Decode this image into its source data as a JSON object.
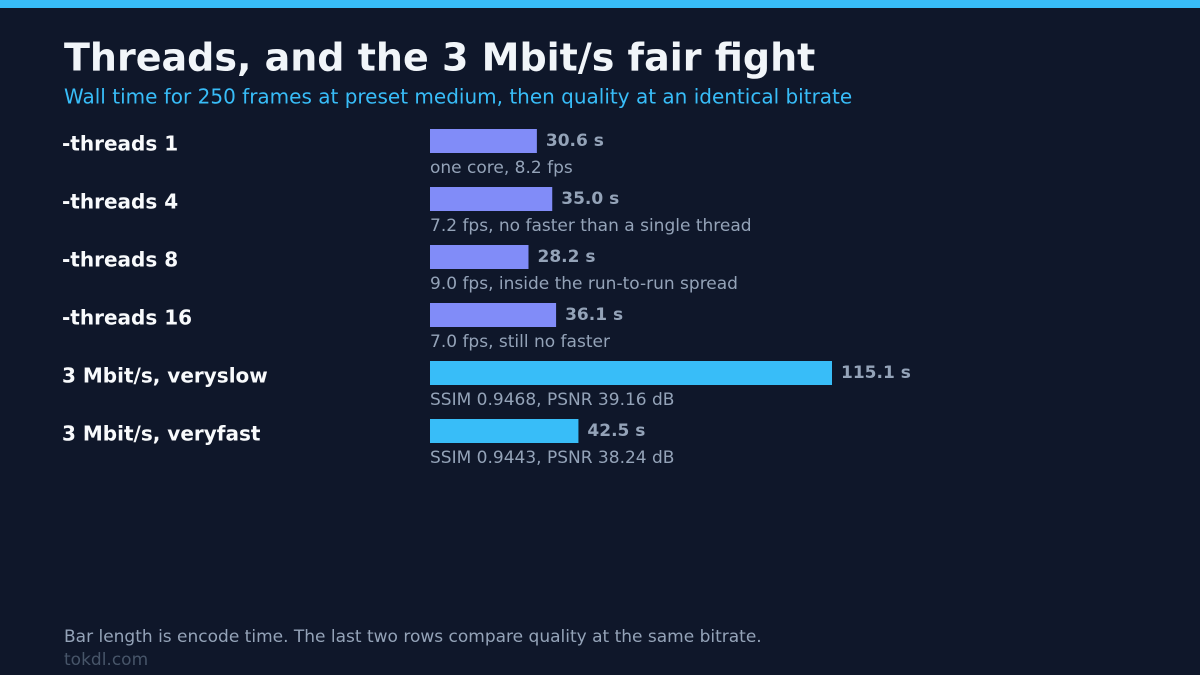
{
  "chart_data": {
    "type": "bar",
    "orientation": "horizontal",
    "title": "Threads, and the 3 Mbit/s fair fight",
    "subtitle": "Wall time for 250 frames at preset medium, then quality at an identical bitrate",
    "categories": [
      "-threads 1",
      "-threads 4",
      "-threads 8",
      "-threads 16",
      "3 Mbit/s, veryslow",
      "3 Mbit/s, veryfast"
    ],
    "values": [
      30.6,
      35.0,
      28.2,
      36.1,
      115.1,
      42.5
    ],
    "value_labels": [
      "30.6 s",
      "35.0 s",
      "28.2 s",
      "36.1 s",
      "115.1 s",
      "42.5 s"
    ],
    "colors": [
      "#818cf8",
      "#818cf8",
      "#818cf8",
      "#818cf8",
      "#38bdf8",
      "#38bdf8"
    ],
    "annotations": [
      "one core, 8.2 fps",
      "7.2 fps, no faster than a single thread",
      "9.0 fps, inside the run-to-run spread",
      "7.0 fps, still no faster",
      "SSIM 0.9468, PSNR 39.16 dB",
      "SSIM 0.9443, PSNR 38.24 dB"
    ],
    "footnote": "Bar length is encode time. The last two rows compare quality at the same bitrate.",
    "source": "tokdl.com"
  }
}
